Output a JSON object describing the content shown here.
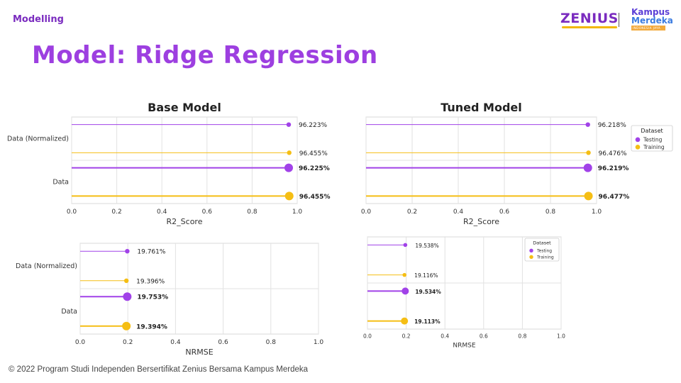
{
  "header": {
    "section": "Modelling",
    "title": "Model: Ridge Regression",
    "logo_zenius": "ZENIUS",
    "logo_km_line1": "Kampus",
    "logo_km_line2": "Merdeka",
    "logo_km_line3": "INDONESIA JAYA"
  },
  "footer": "© 2022 Program Studi Independen Bersertifikat Zenius Bersama Kampus Merdeka",
  "colors": {
    "testing": "#a142e8",
    "training": "#f5be14",
    "title": "#9d3fe0"
  },
  "chart_data": [
    {
      "type": "lollipop",
      "title": "Base Model",
      "xlabel": "R2_Score",
      "xlim": [
        0,
        1
      ],
      "xticks": [
        "0.0",
        "0.2",
        "0.4",
        "0.6",
        "0.8",
        "1.0"
      ],
      "categories": [
        "Data (Normalized)",
        "Data"
      ],
      "series": [
        {
          "name": "Testing",
          "values": [
            0.96223,
            0.96225
          ],
          "labels": [
            "96.223%",
            "96.225%"
          ]
        },
        {
          "name": "Training",
          "values": [
            0.96455,
            0.96455
          ],
          "labels": [
            "96.455%",
            "96.455%"
          ]
        }
      ],
      "grid": true
    },
    {
      "type": "lollipop",
      "title": "Tuned Model",
      "xlabel": "R2_Score",
      "xlim": [
        0,
        1
      ],
      "xticks": [
        "0.0",
        "0.2",
        "0.4",
        "0.6",
        "0.8",
        "1.0"
      ],
      "categories": [
        "Data (Normalized)",
        "Data"
      ],
      "series": [
        {
          "name": "Testing",
          "values": [
            0.96218,
            0.96219
          ],
          "labels": [
            "96.218%",
            "96.219%"
          ]
        },
        {
          "name": "Training",
          "values": [
            0.96476,
            0.96477
          ],
          "labels": [
            "96.476%",
            "96.477%"
          ]
        }
      ],
      "legend": {
        "title": "Dataset",
        "entries": [
          "Testing",
          "Training"
        ],
        "placement": "right"
      },
      "grid": true
    },
    {
      "type": "lollipop",
      "title": "",
      "xlabel": "NRMSE",
      "xlim": [
        0,
        1
      ],
      "xticks": [
        "0.0",
        "0.2",
        "0.4",
        "0.6",
        "0.8",
        "1.0"
      ],
      "categories": [
        "Data (Normalized)",
        "Data"
      ],
      "series": [
        {
          "name": "Testing",
          "values": [
            0.19761,
            0.19753
          ],
          "labels": [
            "19.761%",
            "19.753%"
          ]
        },
        {
          "name": "Training",
          "values": [
            0.19396,
            0.19394
          ],
          "labels": [
            "19.396%",
            "19.394%"
          ]
        }
      ],
      "grid": true
    },
    {
      "type": "lollipop",
      "title": "",
      "xlabel": "NRMSE",
      "xlim": [
        0,
        1
      ],
      "xticks": [
        "0.0",
        "0.2",
        "0.4",
        "0.6",
        "0.8",
        "1.0"
      ],
      "categories": [
        "",
        ""
      ],
      "series": [
        {
          "name": "Testing",
          "values": [
            0.19538,
            0.19534
          ],
          "labels": [
            "19.538%",
            "19.534%"
          ]
        },
        {
          "name": "Training",
          "values": [
            0.19116,
            0.19113
          ],
          "labels": [
            "19.116%",
            "19.113%"
          ]
        }
      ],
      "legend": {
        "title": "Dataset",
        "entries": [
          "Testing",
          "Training"
        ],
        "placement": "top-right"
      },
      "grid": true
    }
  ]
}
